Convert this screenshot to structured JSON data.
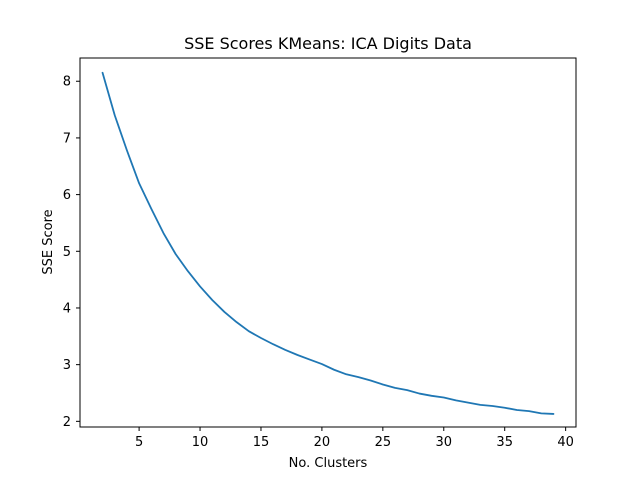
{
  "chart_data": {
    "type": "line",
    "title": "SSE Scores KMeans: ICA Digits Data",
    "xlabel": "No. Clusters",
    "ylabel": "SSE Score",
    "xlim": [
      0.15,
      40.85
    ],
    "ylim": [
      1.9,
      8.41
    ],
    "xticks": [
      5,
      10,
      15,
      20,
      25,
      30,
      35,
      40
    ],
    "yticks": [
      2,
      3,
      4,
      5,
      6,
      7,
      8
    ],
    "grid": false,
    "line_color": "#1f77b4",
    "series": [
      {
        "x": [
          2,
          3,
          4,
          5,
          6,
          7,
          8,
          9,
          10,
          11,
          12,
          13,
          14,
          15,
          16,
          17,
          18,
          19,
          20,
          21,
          22,
          23,
          24,
          25,
          26,
          27,
          28,
          29,
          30,
          31,
          32,
          33,
          34,
          35,
          36,
          37,
          38,
          39
        ],
        "values": [
          8.15,
          7.4,
          6.78,
          6.2,
          5.75,
          5.32,
          4.95,
          4.65,
          4.38,
          4.14,
          3.93,
          3.75,
          3.59,
          3.47,
          3.36,
          3.26,
          3.17,
          3.09,
          3.01,
          2.91,
          2.83,
          2.78,
          2.72,
          2.65,
          2.59,
          2.55,
          2.49,
          2.45,
          2.42,
          2.37,
          2.33,
          2.29,
          2.27,
          2.24,
          2.2,
          2.18,
          2.14,
          2.13
        ]
      }
    ]
  }
}
